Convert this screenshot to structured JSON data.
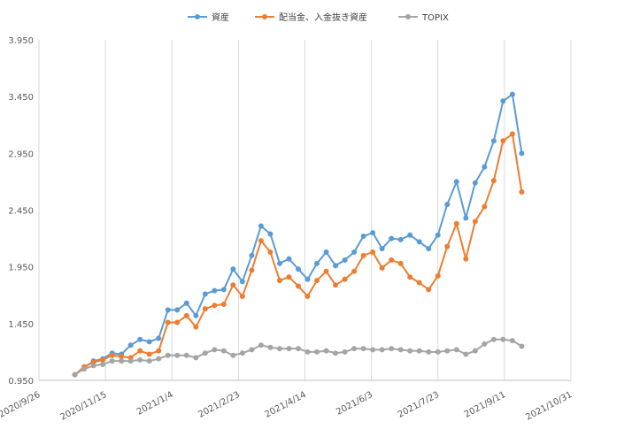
{
  "chart_data": {
    "type": "line",
    "title": "",
    "xlabel": "",
    "ylabel": "",
    "x_ticks": [
      "2020/9/26",
      "2020/11/15",
      "2021/1/4",
      "2021/2/23",
      "2021/4/14",
      "2021/6/3",
      "2021/7/23",
      "2021/9/11",
      "2021/10/31"
    ],
    "y_ticks": [
      "0.950",
      "1.450",
      "1.950",
      "2.450",
      "2.950",
      "3.450",
      "3.950"
    ],
    "xlim": [
      "2020/9/26",
      "2021/10/31"
    ],
    "ylim": [
      0.95,
      3.95
    ],
    "grid": "vertical",
    "legend_position": "top",
    "x": [
      "2020/10/23",
      "2020/10/30",
      "2020/11/6",
      "2020/11/13",
      "2020/11/20",
      "2020/11/27",
      "2020/12/4",
      "2020/12/11",
      "2020/12/18",
      "2020/12/25",
      "2021/1/1",
      "2021/1/8",
      "2021/1/15",
      "2021/1/22",
      "2021/1/29",
      "2021/2/5",
      "2021/2/12",
      "2021/2/19",
      "2021/2/26",
      "2021/3/5",
      "2021/3/12",
      "2021/3/19",
      "2021/3/26",
      "2021/4/2",
      "2021/4/9",
      "2021/4/16",
      "2021/4/23",
      "2021/4/30",
      "2021/5/7",
      "2021/5/14",
      "2021/5/21",
      "2021/5/28",
      "2021/6/4",
      "2021/6/11",
      "2021/6/18",
      "2021/6/25",
      "2021/7/2",
      "2021/7/9",
      "2021/7/16",
      "2021/7/23",
      "2021/7/30",
      "2021/8/6",
      "2021/8/13",
      "2021/8/20",
      "2021/8/27",
      "2021/9/3",
      "2021/9/10",
      "2021/9/17",
      "2021/9/24",
      "2021/10/1"
    ],
    "series": [
      {
        "name": "資産",
        "color": "#5B9BD5",
        "values": [
          1.0,
          1.06,
          1.12,
          1.14,
          1.19,
          1.18,
          1.26,
          1.31,
          1.29,
          1.32,
          1.57,
          1.57,
          1.63,
          1.52,
          1.71,
          1.74,
          1.75,
          1.93,
          1.82,
          2.05,
          2.31,
          2.24,
          1.98,
          2.02,
          1.93,
          1.84,
          1.98,
          2.08,
          1.96,
          2.01,
          2.08,
          2.22,
          2.25,
          2.11,
          2.2,
          2.19,
          2.23,
          2.17,
          2.11,
          2.23,
          2.5,
          2.7,
          2.38,
          2.69,
          2.83,
          3.06,
          3.41,
          3.47,
          2.95,
          null
        ]
      },
      {
        "name": "配当金、入金抜き資産",
        "color": "#ED7D31",
        "values": [
          1.0,
          1.07,
          1.11,
          1.13,
          1.17,
          1.16,
          1.15,
          1.21,
          1.18,
          1.21,
          1.46,
          1.46,
          1.52,
          1.42,
          1.58,
          1.61,
          1.62,
          1.79,
          1.69,
          1.92,
          2.18,
          2.08,
          1.83,
          1.86,
          1.78,
          1.69,
          1.83,
          1.91,
          1.79,
          1.84,
          1.91,
          2.05,
          2.08,
          1.94,
          2.01,
          1.98,
          1.86,
          1.81,
          1.75,
          1.87,
          2.13,
          2.33,
          2.02,
          2.35,
          2.48,
          2.71,
          3.06,
          3.12,
          2.61,
          null
        ]
      },
      {
        "name": "TOPIX",
        "color": "#A5A5A5",
        "values": [
          1.0,
          1.05,
          1.08,
          1.09,
          1.12,
          1.12,
          1.12,
          1.13,
          1.12,
          1.14,
          1.17,
          1.17,
          1.17,
          1.15,
          1.19,
          1.22,
          1.21,
          1.17,
          1.19,
          1.22,
          1.26,
          1.24,
          1.23,
          1.23,
          1.23,
          1.2,
          1.2,
          1.21,
          1.19,
          1.2,
          1.23,
          1.23,
          1.22,
          1.22,
          1.23,
          1.22,
          1.21,
          1.21,
          1.2,
          1.2,
          1.21,
          1.22,
          1.18,
          1.21,
          1.27,
          1.31,
          1.31,
          1.3,
          1.25,
          null
        ]
      }
    ]
  }
}
